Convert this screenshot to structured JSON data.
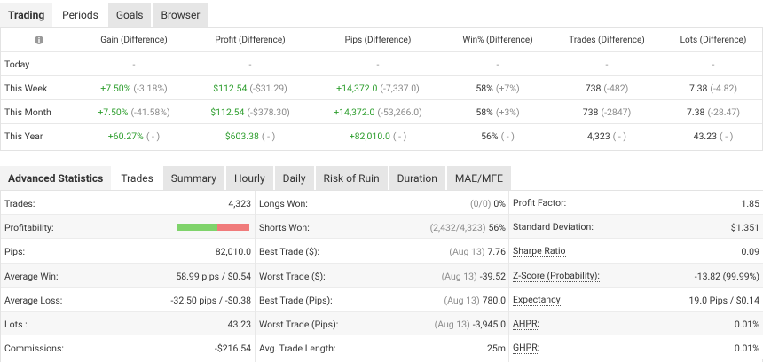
{
  "top_tabs": [
    "Trading",
    "Periods",
    "Goals",
    "Browser"
  ],
  "periods": {
    "columns": [
      "Gain (Difference)",
      "Profit (Difference)",
      "Pips (Difference)",
      "Win% (Difference)",
      "Trades (Difference)",
      "Lots (Difference)"
    ],
    "rows": [
      {
        "label": "Today",
        "cells": [
          {
            "value": "-"
          },
          {
            "value": "-"
          },
          {
            "value": "-"
          },
          {
            "value": "-"
          },
          {
            "value": "-"
          },
          {
            "value": "-"
          }
        ]
      },
      {
        "label": "This Week",
        "cells": [
          {
            "value": "+7.50%",
            "diff": "(-3.18%)"
          },
          {
            "value": "$112.54",
            "diff": "(-$31.29)"
          },
          {
            "value": "+14,372.0",
            "diff": "(-7,337.0)"
          },
          {
            "value": "58%",
            "diff": "(+7%)"
          },
          {
            "value": "738",
            "diff": "(-482)"
          },
          {
            "value": "7.38",
            "diff": "(-4.82)"
          }
        ]
      },
      {
        "label": "This Month",
        "cells": [
          {
            "value": "+7.50%",
            "diff": "(-41.58%)"
          },
          {
            "value": "$112.54",
            "diff": "(-$378.30)"
          },
          {
            "value": "+14,372.0",
            "diff": "(-53,266.0)"
          },
          {
            "value": "58%",
            "diff": "(+3%)"
          },
          {
            "value": "738",
            "diff": "(-2847)"
          },
          {
            "value": "7.38",
            "diff": "(-28.47)"
          }
        ]
      },
      {
        "label": "This Year",
        "cells": [
          {
            "value": "+60.27%",
            "diff": "( - )"
          },
          {
            "value": "$603.38",
            "diff": "( - )"
          },
          {
            "value": "+82,010.0",
            "diff": "( - )"
          },
          {
            "value": "56%",
            "diff": "( - )"
          },
          {
            "value": "4,323",
            "diff": "( - )"
          },
          {
            "value": "43.23",
            "diff": "( - )"
          }
        ]
      }
    ]
  },
  "stats_tabs": [
    "Advanced Statistics",
    "Trades",
    "Summary",
    "Hourly",
    "Daily",
    "Risk of Ruin",
    "Duration",
    "MAE/MFE"
  ],
  "stats": {
    "columns": [
      [
        {
          "label": "Trades:",
          "value": "4,323"
        },
        {
          "label": "Profitability:",
          "bar": 56
        },
        {
          "label": "Pips:",
          "value": "82,010.0"
        },
        {
          "label": "Average Win:",
          "value": "58.99 pips / $0.54"
        },
        {
          "label": "Average Loss:",
          "value": "-32.50 pips / -$0.38"
        },
        {
          "label": "Lots :",
          "value": "43.23"
        },
        {
          "label": "Commissions:",
          "value": "-$216.54"
        }
      ],
      [
        {
          "label": "Longs Won:",
          "detail": "(0/0)",
          "value": "0%"
        },
        {
          "label": "Shorts Won:",
          "detail": "(2,432/4,323)",
          "value": "56%"
        },
        {
          "label": "Best Trade ($):",
          "detail": "(Aug 13)",
          "value": "7.76"
        },
        {
          "label": "Worst Trade ($):",
          "detail": "(Aug 13)",
          "value": "-39.52"
        },
        {
          "label": "Best Trade (Pips):",
          "detail": "(Aug 13)",
          "value": "780.0"
        },
        {
          "label": "Worst Trade (Pips):",
          "detail": "(Aug 13)",
          "value": "-3,945.0"
        },
        {
          "label": "Avg. Trade Length:",
          "value": "25m"
        }
      ],
      [
        {
          "label": "Profit Factor:",
          "value": "1.85"
        },
        {
          "label": "Standard Deviation:",
          "value": "$1.351"
        },
        {
          "label": "Sharpe Ratio",
          "value": "0.09"
        },
        {
          "label": "Z-Score (Probability):",
          "value": "-13.82 (99.99%)"
        },
        {
          "label": "Expectancy",
          "value": "19.0 Pips / $0.14"
        },
        {
          "label": "AHPR:",
          "value": "0.01%"
        },
        {
          "label": "GHPR:",
          "value": "0.01%"
        }
      ]
    ]
  }
}
